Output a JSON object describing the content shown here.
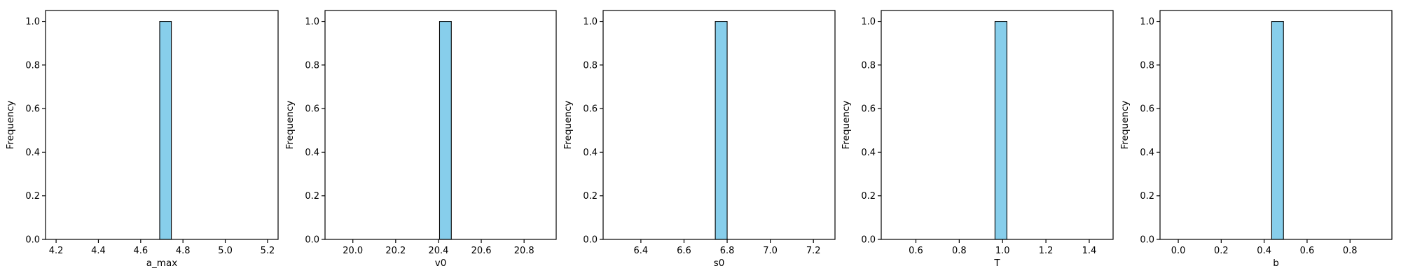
{
  "chart_data": [
    {
      "type": "bar",
      "xlabel": "a_max",
      "ylabel": "Frequency",
      "xlim": [
        4.15,
        5.25
      ],
      "ylim": [
        0,
        1.05
      ],
      "xticks": [
        4.2,
        4.4,
        4.6,
        4.8,
        5.0,
        5.2
      ],
      "yticks": [
        0.0,
        0.2,
        0.4,
        0.6,
        0.8,
        1.0
      ],
      "bars": [
        {
          "x0": 4.69,
          "x1": 4.745,
          "value": 1
        }
      ],
      "grid": false,
      "bar_color": "#87CEEB"
    },
    {
      "type": "bar",
      "xlabel": "v0",
      "ylabel": "Frequency",
      "xlim": [
        19.87,
        20.95
      ],
      "ylim": [
        0,
        1.05
      ],
      "xticks": [
        20.0,
        20.2,
        20.4,
        20.6,
        20.8
      ],
      "yticks": [
        0.0,
        0.2,
        0.4,
        0.6,
        0.8,
        1.0
      ],
      "bars": [
        {
          "x0": 20.405,
          "x1": 20.46,
          "value": 1
        }
      ],
      "grid": false,
      "bar_color": "#87CEEB"
    },
    {
      "type": "bar",
      "xlabel": "s0",
      "ylabel": "Frequency",
      "xlim": [
        6.225,
        7.3
      ],
      "ylim": [
        0,
        1.05
      ],
      "xticks": [
        6.4,
        6.6,
        6.8,
        7.0,
        7.2
      ],
      "yticks": [
        0.0,
        0.2,
        0.4,
        0.6,
        0.8,
        1.0
      ],
      "bars": [
        {
          "x0": 6.745,
          "x1": 6.8,
          "value": 1
        }
      ],
      "grid": false,
      "bar_color": "#87CEEB"
    },
    {
      "type": "bar",
      "xlabel": "T",
      "ylabel": "Frequency",
      "xlim": [
        0.44,
        1.51
      ],
      "ylim": [
        0,
        1.05
      ],
      "xticks": [
        0.6,
        0.8,
        1.0,
        1.2,
        1.4
      ],
      "yticks": [
        0.0,
        0.2,
        0.4,
        0.6,
        0.8,
        1.0
      ],
      "bars": [
        {
          "x0": 0.965,
          "x1": 1.02,
          "value": 1
        }
      ],
      "grid": false,
      "bar_color": "#87CEEB"
    },
    {
      "type": "bar",
      "xlabel": "b",
      "ylabel": "Frequency",
      "xlim": [
        -0.085,
        0.995
      ],
      "ylim": [
        0,
        1.05
      ],
      "xticks": [
        0.0,
        0.2,
        0.4,
        0.6,
        0.8
      ],
      "yticks": [
        0.0,
        0.2,
        0.4,
        0.6,
        0.8,
        1.0
      ],
      "bars": [
        {
          "x0": 0.435,
          "x1": 0.49,
          "value": 1
        }
      ],
      "grid": false,
      "bar_color": "#87CEEB"
    }
  ]
}
